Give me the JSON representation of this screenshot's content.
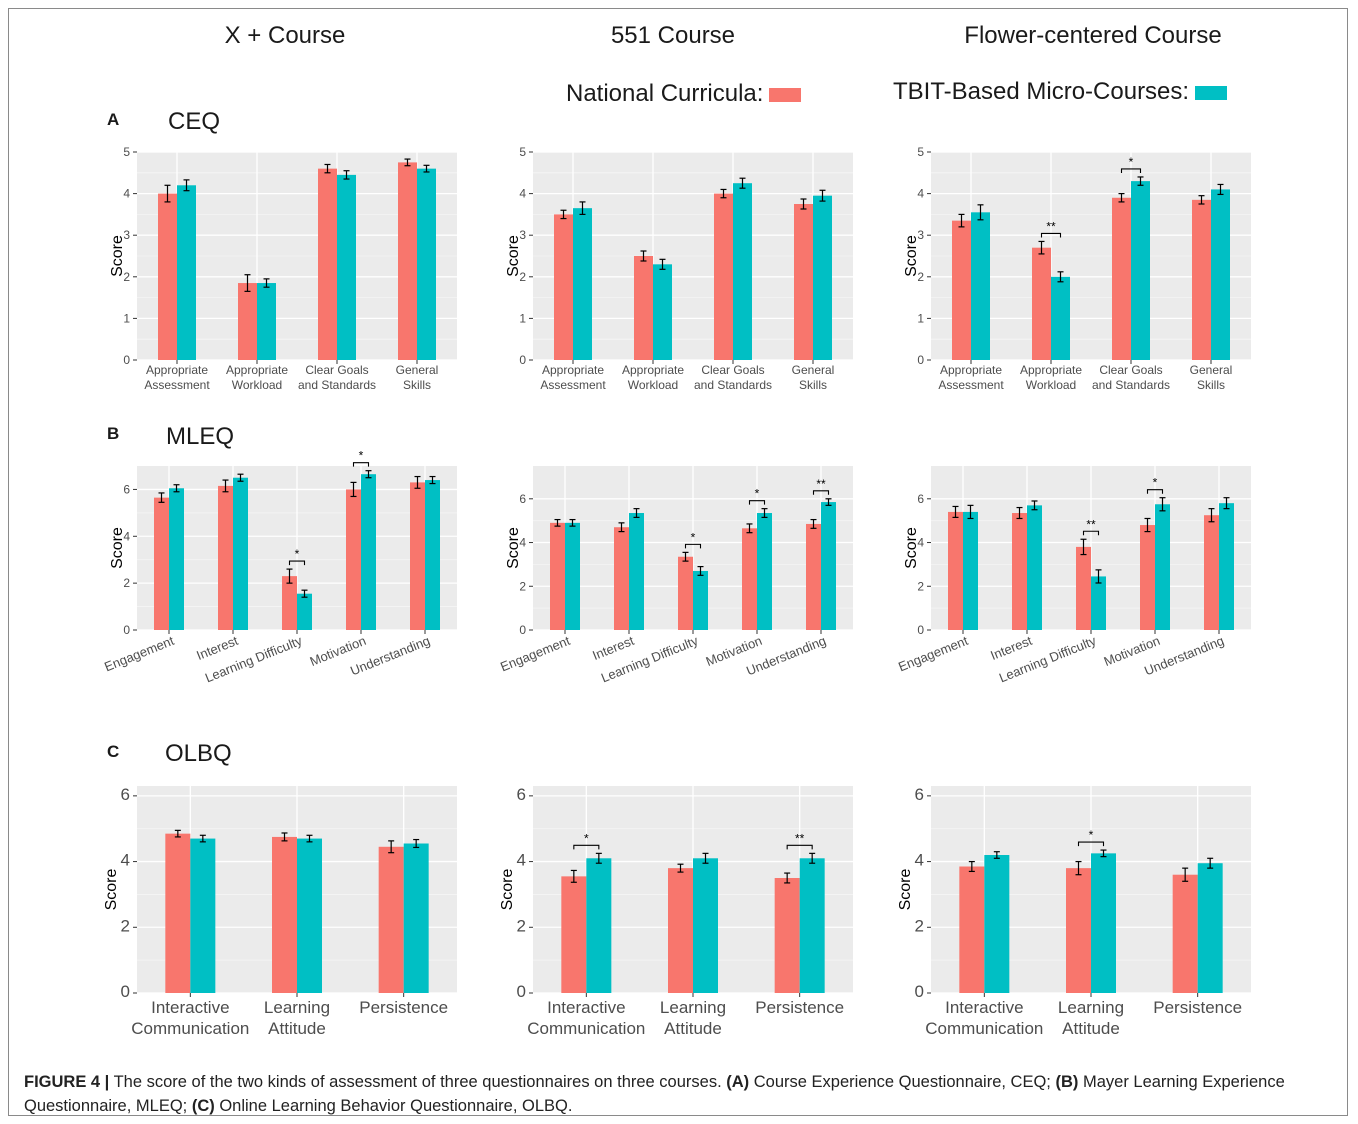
{
  "course_titles": [
    "X + Course",
    "551 Course",
    "Flower-centered Course"
  ],
  "legend": {
    "national_label": "National Curricula:",
    "tbit_label": "TBIT-Based Micro-Courses:",
    "national_color": "#F8766D",
    "tbit_color": "#00BFC4"
  },
  "rows": [
    {
      "letter": "A",
      "title": "CEQ"
    },
    {
      "letter": "B",
      "title": "MLEQ"
    },
    {
      "letter": "C",
      "title": "OLBQ"
    }
  ],
  "caption": {
    "figure": "FIGURE 4 |",
    "text1": " The score of the two kinds of assessment of three questionnaires on three courses. ",
    "a": "(A)",
    "text2": " Course Experience Questionnaire, CEQ; ",
    "b": "(B)",
    "text3": " Mayer Learning Experience Questionnaire, MLEQ; ",
    "c": "(C)",
    "text4": " Online Learning Behavior Questionnaire, OLBQ."
  },
  "chart_data": [
    {
      "type": "bar",
      "row": "CEQ",
      "course": "X + Course",
      "ylabel": "Score",
      "ylim": [
        0,
        5
      ],
      "yticks": [
        0,
        1,
        2,
        3,
        4,
        5
      ],
      "categories": [
        [
          "Appropriate",
          "Assessment"
        ],
        [
          "Appropriate",
          "Workload"
        ],
        [
          "Clear Goals",
          "and Standards"
        ],
        [
          "General",
          "Skills"
        ]
      ],
      "series": [
        {
          "name": "National Curricula",
          "values": [
            4.0,
            1.85,
            4.6,
            4.75
          ],
          "err": [
            0.2,
            0.2,
            0.1,
            0.08
          ]
        },
        {
          "name": "TBIT-Based Micro-Courses",
          "values": [
            4.2,
            1.85,
            4.45,
            4.6
          ],
          "err": [
            0.13,
            0.1,
            0.1,
            0.08
          ]
        }
      ],
      "significance": []
    },
    {
      "type": "bar",
      "row": "CEQ",
      "course": "551 Course",
      "ylabel": "Score",
      "ylim": [
        0,
        5
      ],
      "yticks": [
        0,
        1,
        2,
        3,
        4,
        5
      ],
      "categories": [
        [
          "Appropriate",
          "Assessment"
        ],
        [
          "Appropriate",
          "Workload"
        ],
        [
          "Clear Goals",
          "and Standards"
        ],
        [
          "General",
          "Skills"
        ]
      ],
      "series": [
        {
          "name": "National Curricula",
          "values": [
            3.5,
            2.5,
            4.0,
            3.75
          ],
          "err": [
            0.1,
            0.12,
            0.1,
            0.12
          ]
        },
        {
          "name": "TBIT-Based Micro-Courses",
          "values": [
            3.65,
            2.3,
            4.25,
            3.95
          ],
          "err": [
            0.15,
            0.12,
            0.12,
            0.13
          ]
        }
      ],
      "significance": []
    },
    {
      "type": "bar",
      "row": "CEQ",
      "course": "Flower-centered Course",
      "ylabel": "Score",
      "ylim": [
        0,
        5
      ],
      "yticks": [
        0,
        1,
        2,
        3,
        4,
        5
      ],
      "categories": [
        [
          "Appropriate",
          "Assessment"
        ],
        [
          "Appropriate",
          "Workload"
        ],
        [
          "Clear Goals",
          "and Standards"
        ],
        [
          "General",
          "Skills"
        ]
      ],
      "series": [
        {
          "name": "National Curricula",
          "values": [
            3.35,
            2.7,
            3.9,
            3.85
          ],
          "err": [
            0.15,
            0.15,
            0.1,
            0.1
          ]
        },
        {
          "name": "TBIT-Based Micro-Courses",
          "values": [
            3.55,
            2.0,
            4.3,
            4.1
          ],
          "err": [
            0.18,
            0.12,
            0.1,
            0.12
          ]
        }
      ],
      "significance": [
        {
          "category": 1,
          "label": "**"
        },
        {
          "category": 2,
          "label": "*"
        }
      ]
    },
    {
      "type": "bar",
      "row": "MLEQ",
      "course": "X + Course",
      "ylabel": "Score",
      "ylim": [
        0,
        7
      ],
      "yticks": [
        0,
        2,
        4,
        6
      ],
      "categories": [
        "Engagement",
        "Interest",
        "Learning Difficulty",
        "Motivation",
        "Understanding"
      ],
      "series": [
        {
          "name": "National Curricula",
          "values": [
            5.65,
            6.15,
            2.3,
            6.0,
            6.3
          ],
          "err": [
            0.2,
            0.25,
            0.3,
            0.3,
            0.25
          ]
        },
        {
          "name": "TBIT-Based Micro-Courses",
          "values": [
            6.05,
            6.5,
            1.55,
            6.65,
            6.4
          ],
          "err": [
            0.15,
            0.15,
            0.15,
            0.15,
            0.15
          ]
        }
      ],
      "significance": [
        {
          "category": 2,
          "label": "*"
        },
        {
          "category": 3,
          "label": "*"
        }
      ]
    },
    {
      "type": "bar",
      "row": "MLEQ",
      "course": "551 Course",
      "ylabel": "Score",
      "ylim": [
        0,
        7.5
      ],
      "yticks": [
        0,
        2,
        4,
        6
      ],
      "categories": [
        "Engagement",
        "Interest",
        "Learning Difficulty",
        "Motivation",
        "Understanding"
      ],
      "series": [
        {
          "name": "National Curricula",
          "values": [
            4.9,
            4.7,
            3.35,
            4.65,
            4.85
          ],
          "err": [
            0.15,
            0.2,
            0.2,
            0.2,
            0.2
          ]
        },
        {
          "name": "TBIT-Based Micro-Courses",
          "values": [
            4.9,
            5.35,
            2.7,
            5.35,
            5.85
          ],
          "err": [
            0.15,
            0.2,
            0.2,
            0.2,
            0.15
          ]
        }
      ],
      "significance": [
        {
          "category": 2,
          "label": "*"
        },
        {
          "category": 3,
          "label": "*"
        },
        {
          "category": 4,
          "label": "**"
        }
      ]
    },
    {
      "type": "bar",
      "row": "MLEQ",
      "course": "Flower-centered Course",
      "ylabel": "Score",
      "ylim": [
        0,
        7.5
      ],
      "yticks": [
        0,
        2,
        4,
        6
      ],
      "categories": [
        "Engagement",
        "Interest",
        "Learning Difficulty",
        "Motivation",
        "Understanding"
      ],
      "series": [
        {
          "name": "National Curricula",
          "values": [
            5.4,
            5.35,
            3.8,
            4.8,
            5.25
          ],
          "err": [
            0.25,
            0.25,
            0.35,
            0.3,
            0.3
          ]
        },
        {
          "name": "TBIT-Based Micro-Courses",
          "values": [
            5.4,
            5.7,
            2.45,
            5.75,
            5.8
          ],
          "err": [
            0.3,
            0.2,
            0.3,
            0.3,
            0.25
          ]
        }
      ],
      "significance": [
        {
          "category": 2,
          "label": "**"
        },
        {
          "category": 3,
          "label": "*"
        }
      ]
    },
    {
      "type": "bar",
      "row": "OLBQ",
      "course": "X + Course",
      "ylabel": "Score",
      "ylim": [
        0,
        6.3
      ],
      "yticks": [
        0,
        2,
        4,
        6
      ],
      "categories": [
        [
          "Interactive",
          "Communication"
        ],
        [
          "Learning",
          "Attitude"
        ],
        [
          "Persistence"
        ]
      ],
      "series": [
        {
          "name": "National Curricula",
          "values": [
            4.85,
            4.75,
            4.45
          ],
          "err": [
            0.1,
            0.12,
            0.18
          ]
        },
        {
          "name": "TBIT-Based Micro-Courses",
          "values": [
            4.7,
            4.7,
            4.55
          ],
          "err": [
            0.1,
            0.1,
            0.12
          ]
        }
      ],
      "significance": []
    },
    {
      "type": "bar",
      "row": "OLBQ",
      "course": "551 Course",
      "ylabel": "Score",
      "ylim": [
        0,
        6.3
      ],
      "yticks": [
        0,
        2,
        4,
        6
      ],
      "categories": [
        [
          "Interactive",
          "Communication"
        ],
        [
          "Learning",
          "Attitude"
        ],
        [
          "Persistence"
        ]
      ],
      "series": [
        {
          "name": "National Curricula",
          "values": [
            3.55,
            3.8,
            3.5
          ],
          "err": [
            0.18,
            0.12,
            0.15
          ]
        },
        {
          "name": "TBIT-Based Micro-Courses",
          "values": [
            4.1,
            4.1,
            4.1
          ],
          "err": [
            0.15,
            0.15,
            0.15
          ]
        }
      ],
      "significance": [
        {
          "category": 0,
          "label": "*"
        },
        {
          "category": 2,
          "label": "**"
        }
      ]
    },
    {
      "type": "bar",
      "row": "OLBQ",
      "course": "Flower-centered Course",
      "ylabel": "Score",
      "ylim": [
        0,
        6.3
      ],
      "yticks": [
        0,
        2,
        4,
        6
      ],
      "categories": [
        [
          "Interactive",
          "Communication"
        ],
        [
          "Learning",
          "Attitude"
        ],
        [
          "Persistence"
        ]
      ],
      "series": [
        {
          "name": "National Curricula",
          "values": [
            3.85,
            3.8,
            3.6
          ],
          "err": [
            0.15,
            0.2,
            0.2
          ]
        },
        {
          "name": "TBIT-Based Micro-Courses",
          "values": [
            4.2,
            4.25,
            3.95
          ],
          "err": [
            0.1,
            0.1,
            0.15
          ]
        }
      ],
      "significance": [
        {
          "category": 1,
          "label": "*"
        }
      ]
    }
  ]
}
